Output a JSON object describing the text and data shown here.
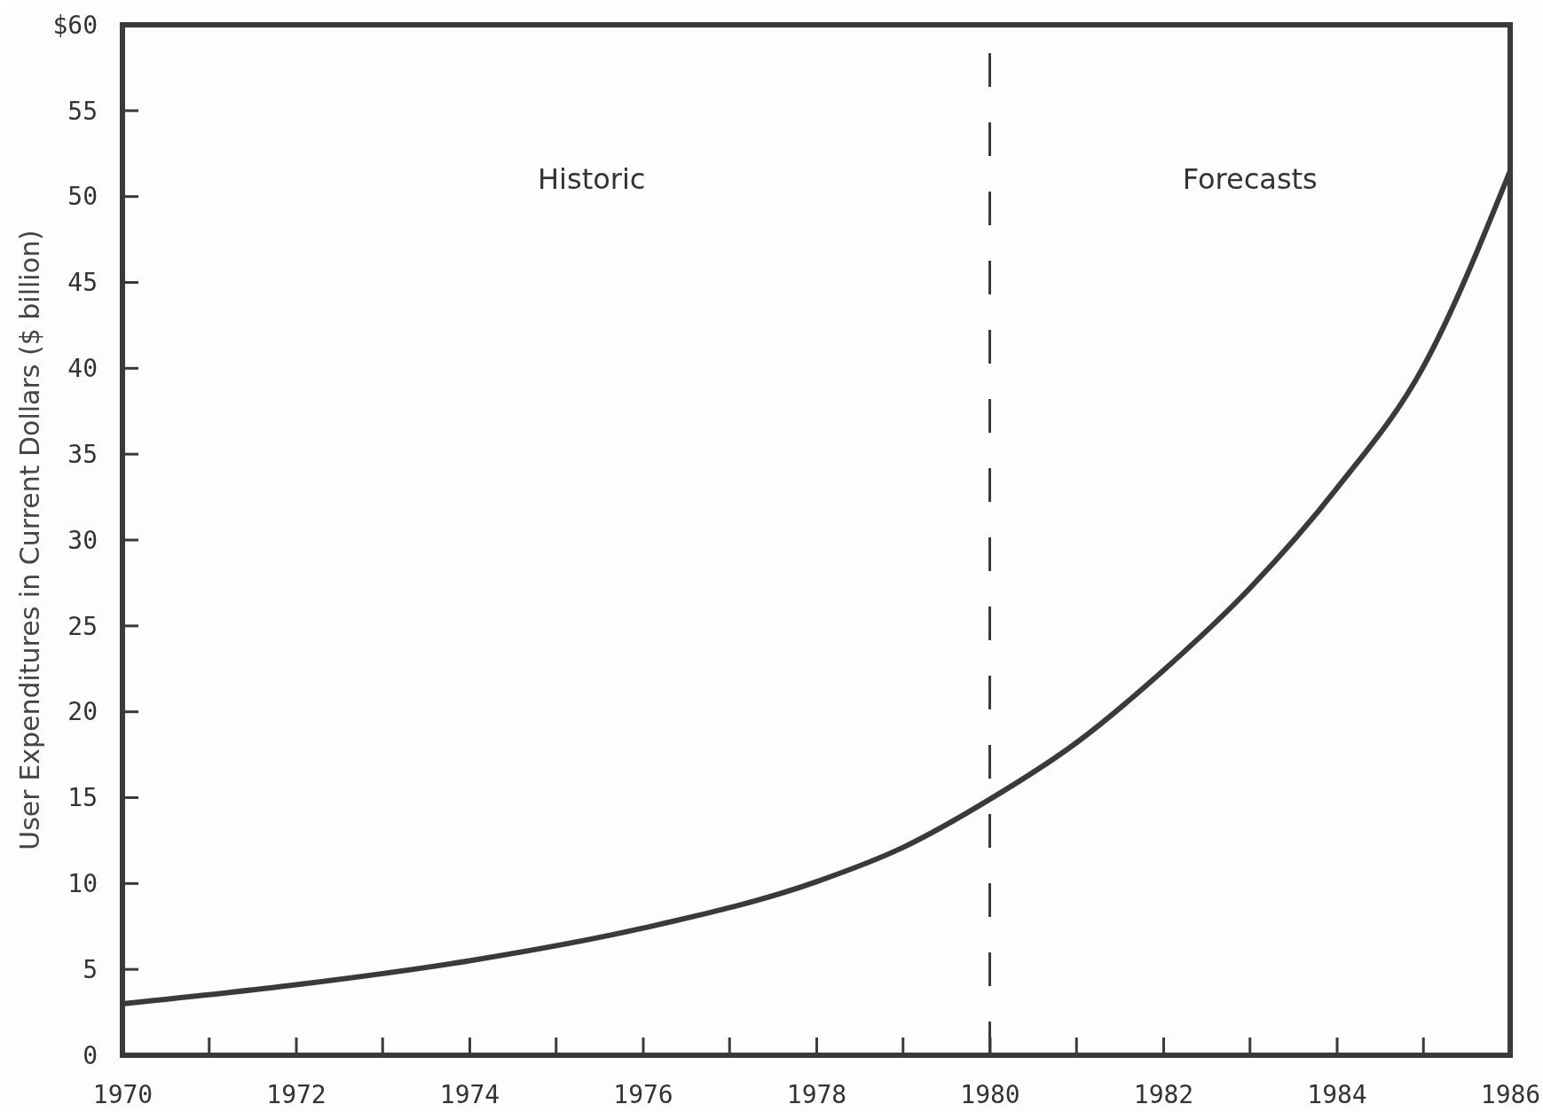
{
  "chart_data": {
    "type": "line",
    "ylabel": "User Expenditures in Current Dollars ($ billion)",
    "x": [
      1970,
      1972,
      1974,
      1976,
      1978,
      1979,
      1980,
      1981,
      1982,
      1983,
      1984,
      1985,
      1986
    ],
    "series": [
      {
        "color": "#3a3a3a",
        "values": [
          3.0,
          4.1,
          5.5,
          7.4,
          10.1,
          12.1,
          14.9,
          18.2,
          22.4,
          27.2,
          33.0,
          40.1,
          51.5
        ]
      }
    ],
    "xlim": [
      1970,
      1986
    ],
    "xticks": [
      1970,
      1972,
      1974,
      1976,
      1978,
      1980,
      1982,
      1984,
      1986
    ],
    "ylim": [
      0,
      60
    ],
    "yticks": [
      0,
      5,
      10,
      15,
      20,
      25,
      30,
      35,
      40,
      45,
      50,
      55,
      {
        "value": 60,
        "label": "$60"
      }
    ],
    "ref_lines": [
      {
        "axis": "x",
        "value": 1980,
        "line_style": "dashed",
        "color": "#3a3a3a"
      }
    ],
    "annotations": [
      "Historic",
      "Forecasts"
    ],
    "grid": false,
    "marker": "none",
    "line_style": "solid"
  }
}
